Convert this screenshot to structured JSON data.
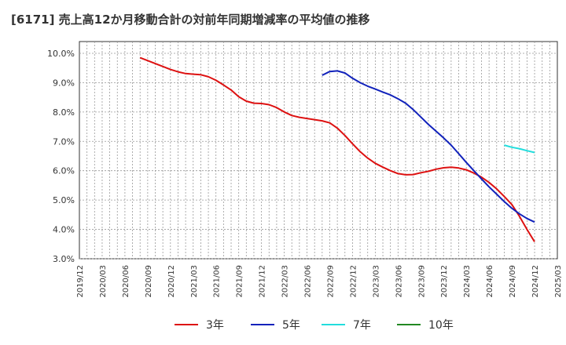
{
  "title": "[6171]  売上高12か月移動合計の対前年同期増減率の平均値の推移",
  "chart_data": {
    "type": "line",
    "title": "[6171]  売上高12か月移動合計の対前年同期増減率の平均値の推移",
    "xlabel": "",
    "ylabel": "",
    "ylim": [
      3.0,
      10.4
    ],
    "y_ticks": [
      "3.0%",
      "4.0%",
      "5.0%",
      "6.0%",
      "7.0%",
      "8.0%",
      "9.0%",
      "10.0%"
    ],
    "y_tick_values": [
      3,
      4,
      5,
      6,
      7,
      8,
      9,
      10
    ],
    "x_tick_labels": [
      "2019/12",
      "2020/03",
      "2020/06",
      "2020/09",
      "2020/12",
      "2021/03",
      "2021/06",
      "2021/09",
      "2021/12",
      "2022/03",
      "2022/06",
      "2022/09",
      "2022/12",
      "2023/03",
      "2023/06",
      "2023/09",
      "2023/12",
      "2024/03",
      "2024/06",
      "2024/09",
      "2024/12",
      "2025/03"
    ],
    "x_range": [
      "2019/12",
      "2025/03"
    ],
    "grid": true,
    "legend_position": "bottom",
    "series": [
      {
        "name": "3年",
        "color": "#dd1111",
        "points": [
          [
            "2020/08",
            9.85
          ],
          [
            "2020/09",
            9.75
          ],
          [
            "2020/10",
            9.65
          ],
          [
            "2020/11",
            9.55
          ],
          [
            "2020/12",
            9.45
          ],
          [
            "2021/01",
            9.37
          ],
          [
            "2021/02",
            9.31
          ],
          [
            "2021/03",
            9.29
          ],
          [
            "2021/04",
            9.27
          ],
          [
            "2021/05",
            9.2
          ],
          [
            "2021/06",
            9.08
          ],
          [
            "2021/07",
            8.92
          ],
          [
            "2021/08",
            8.75
          ],
          [
            "2021/09",
            8.52
          ],
          [
            "2021/10",
            8.37
          ],
          [
            "2021/11",
            8.3
          ],
          [
            "2021/12",
            8.29
          ],
          [
            "2022/01",
            8.25
          ],
          [
            "2022/02",
            8.15
          ],
          [
            "2022/03",
            8.0
          ],
          [
            "2022/04",
            7.88
          ],
          [
            "2022/05",
            7.82
          ],
          [
            "2022/06",
            7.78
          ],
          [
            "2022/07",
            7.74
          ],
          [
            "2022/08",
            7.7
          ],
          [
            "2022/09",
            7.63
          ],
          [
            "2022/10",
            7.45
          ],
          [
            "2022/11",
            7.2
          ],
          [
            "2022/12",
            6.92
          ],
          [
            "2023/01",
            6.65
          ],
          [
            "2023/02",
            6.43
          ],
          [
            "2023/03",
            6.25
          ],
          [
            "2023/04",
            6.12
          ],
          [
            "2023/05",
            6.0
          ],
          [
            "2023/06",
            5.9
          ],
          [
            "2023/07",
            5.86
          ],
          [
            "2023/08",
            5.87
          ],
          [
            "2023/09",
            5.93
          ],
          [
            "2023/10",
            5.98
          ],
          [
            "2023/11",
            6.05
          ],
          [
            "2023/12",
            6.1
          ],
          [
            "2024/01",
            6.12
          ],
          [
            "2024/02",
            6.09
          ],
          [
            "2024/03",
            6.03
          ],
          [
            "2024/04",
            5.92
          ],
          [
            "2024/05",
            5.78
          ],
          [
            "2024/06",
            5.6
          ],
          [
            "2024/07",
            5.38
          ],
          [
            "2024/08",
            5.12
          ],
          [
            "2024/09",
            4.85
          ],
          [
            "2024/10",
            4.45
          ],
          [
            "2024/11",
            4.0
          ],
          [
            "2024/12",
            3.58
          ]
        ]
      },
      {
        "name": "5年",
        "color": "#1122bb",
        "points": [
          [
            "2022/08",
            9.25
          ],
          [
            "2022/09",
            9.38
          ],
          [
            "2022/10",
            9.4
          ],
          [
            "2022/11",
            9.33
          ],
          [
            "2022/12",
            9.15
          ],
          [
            "2023/01",
            9.0
          ],
          [
            "2023/02",
            8.88
          ],
          [
            "2023/03",
            8.78
          ],
          [
            "2023/04",
            8.68
          ],
          [
            "2023/05",
            8.58
          ],
          [
            "2023/06",
            8.45
          ],
          [
            "2023/07",
            8.3
          ],
          [
            "2023/08",
            8.08
          ],
          [
            "2023/09",
            7.83
          ],
          [
            "2023/10",
            7.58
          ],
          [
            "2023/11",
            7.35
          ],
          [
            "2023/12",
            7.12
          ],
          [
            "2024/01",
            6.87
          ],
          [
            "2024/02",
            6.58
          ],
          [
            "2024/03",
            6.28
          ],
          [
            "2024/04",
            6.0
          ],
          [
            "2024/05",
            5.72
          ],
          [
            "2024/06",
            5.45
          ],
          [
            "2024/07",
            5.2
          ],
          [
            "2024/08",
            4.95
          ],
          [
            "2024/09",
            4.72
          ],
          [
            "2024/10",
            4.53
          ],
          [
            "2024/11",
            4.37
          ],
          [
            "2024/12",
            4.25
          ]
        ]
      },
      {
        "name": "7年",
        "color": "#22dddd",
        "points": [
          [
            "2024/08",
            6.87
          ],
          [
            "2024/09",
            6.8
          ],
          [
            "2024/10",
            6.75
          ],
          [
            "2024/11",
            6.68
          ],
          [
            "2024/12",
            6.62
          ]
        ]
      },
      {
        "name": "10年",
        "color": "#228822",
        "points": []
      }
    ]
  }
}
